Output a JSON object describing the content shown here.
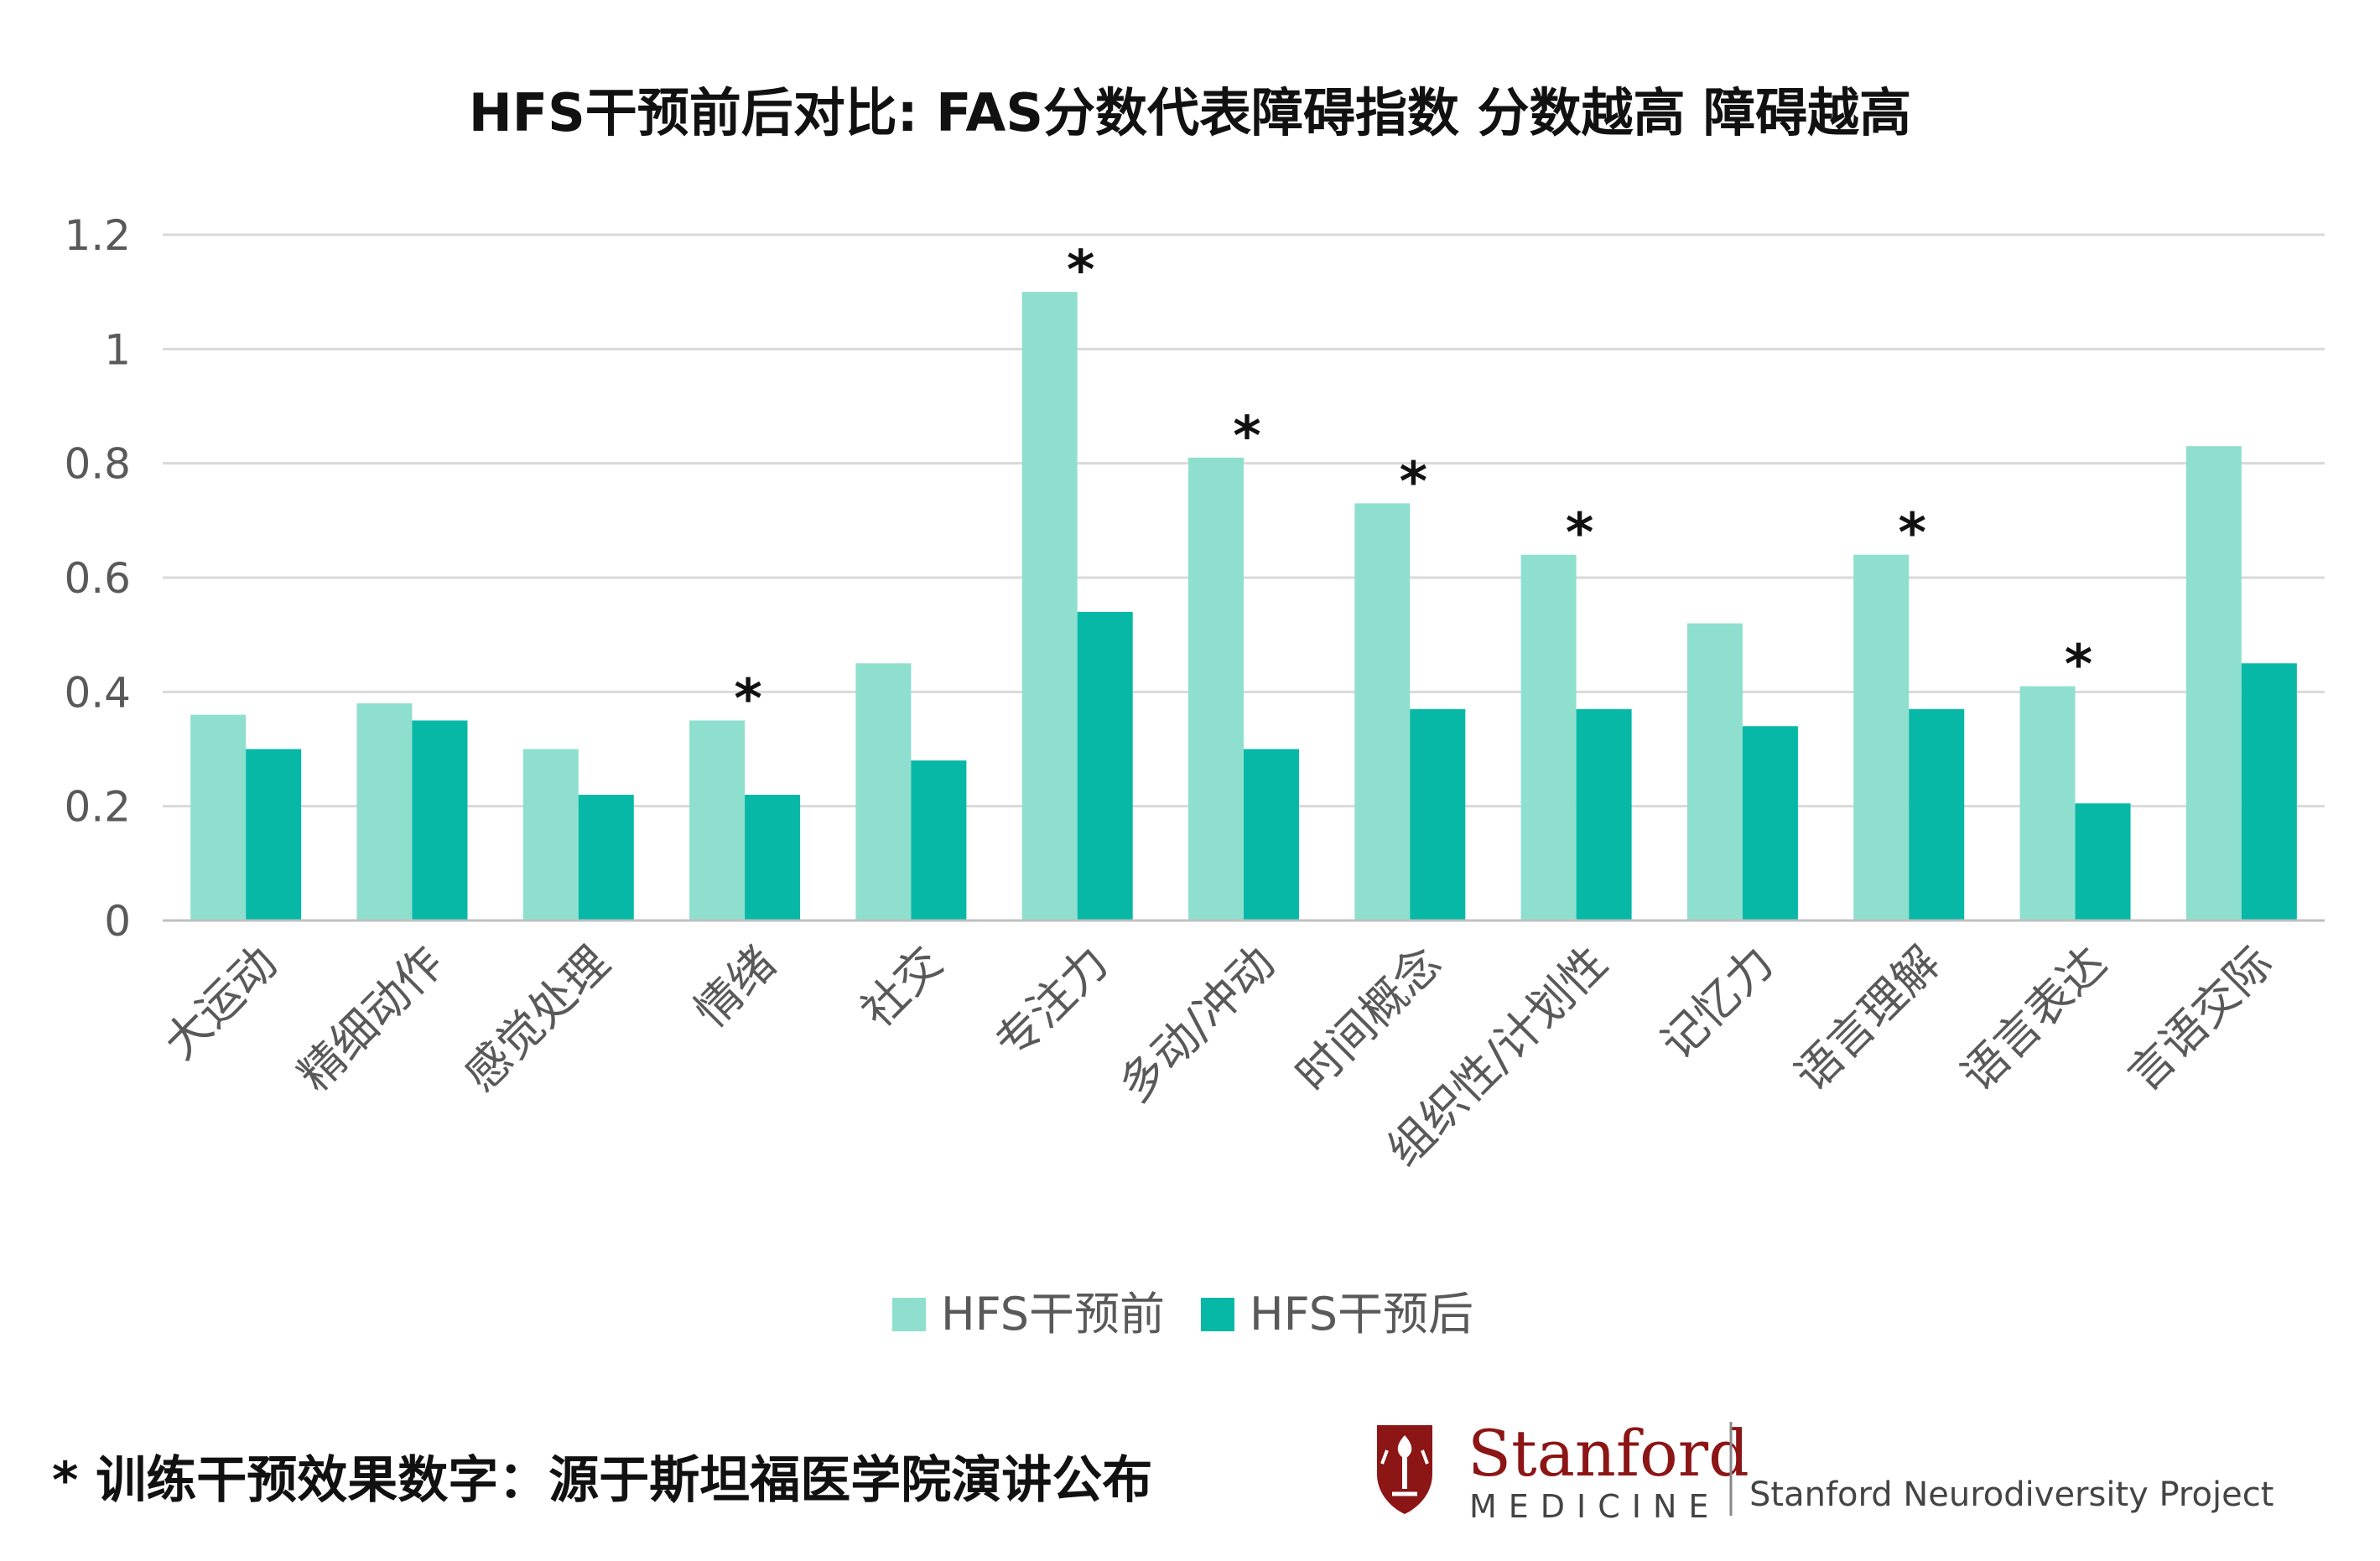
{
  "chart_data": {
    "type": "bar",
    "title": "HFS干预前后对比: FAS分数代表障碍指数 分数越高 障碍越高",
    "categories": [
      "大运动",
      "精细动作",
      "感觉处理",
      "情绪",
      "社交",
      "专注力",
      "多动/冲动",
      "时间概念",
      "组织性/计划性",
      "记忆力",
      "语言理解",
      "语言表达",
      "言语交际"
    ],
    "series": [
      {
        "name": "HFS干预前",
        "color": "#8fdfcf",
        "values": [
          0.36,
          0.38,
          0.3,
          0.35,
          0.45,
          1.1,
          0.81,
          0.73,
          0.64,
          0.52,
          0.64,
          0.41,
          0.83
        ]
      },
      {
        "name": "HFS干预后",
        "color": "#07b8a7",
        "values": [
          0.3,
          0.35,
          0.22,
          0.22,
          0.28,
          0.54,
          0.3,
          0.37,
          0.37,
          0.34,
          0.37,
          0.205,
          0.45
        ]
      }
    ],
    "significance_marker": "*",
    "significant": [
      false,
      false,
      false,
      true,
      false,
      true,
      true,
      true,
      true,
      false,
      true,
      true,
      false
    ],
    "ylim": [
      0,
      1.2
    ],
    "yticks": [
      0,
      0.2,
      0.4,
      0.6,
      0.8,
      1,
      1.2
    ],
    "ytick_labels": [
      "0",
      "0.2",
      "0.4",
      "0.6",
      "0.8",
      "1",
      "1.2"
    ],
    "grid": true,
    "legend_position": "bottom-center",
    "gridline_color": "#d9d9d9",
    "axis_color": "#bfbfbf"
  },
  "footnote": "* 训练干预效果数字：源于斯坦福医学院演讲公布",
  "logo": {
    "wordmark": "Stanford",
    "subtitle": "MEDICINE",
    "project": "Stanford Neurodiversity Project",
    "icon": "stanford-tree-shield-icon",
    "brand_color": "#8c1515"
  }
}
